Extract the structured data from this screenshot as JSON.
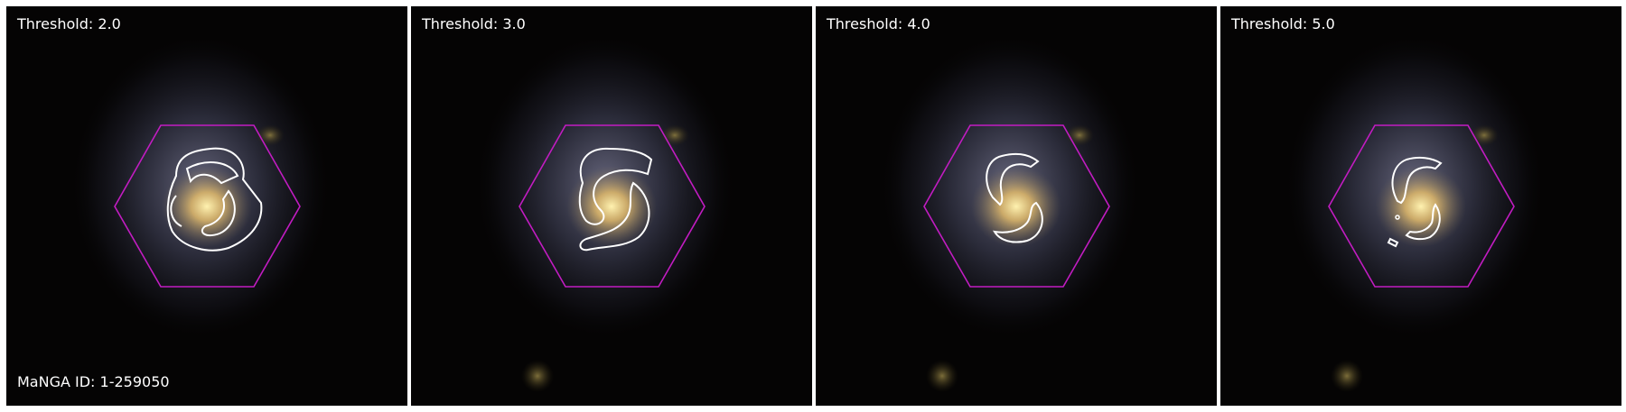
{
  "panels": [
    {
      "threshold_label": "Threshold: 2.0"
    },
    {
      "threshold_label": "Threshold: 3.0"
    },
    {
      "threshold_label": "Threshold: 4.0"
    },
    {
      "threshold_label": "Threshold: 5.0"
    }
  ],
  "manga_id_label": "MaNGA ID: 1-259050",
  "colors": {
    "background": "#050404",
    "hexagon": "#c21cc2",
    "contour": "#ffffff",
    "galaxy_core": "#f3d98a"
  }
}
